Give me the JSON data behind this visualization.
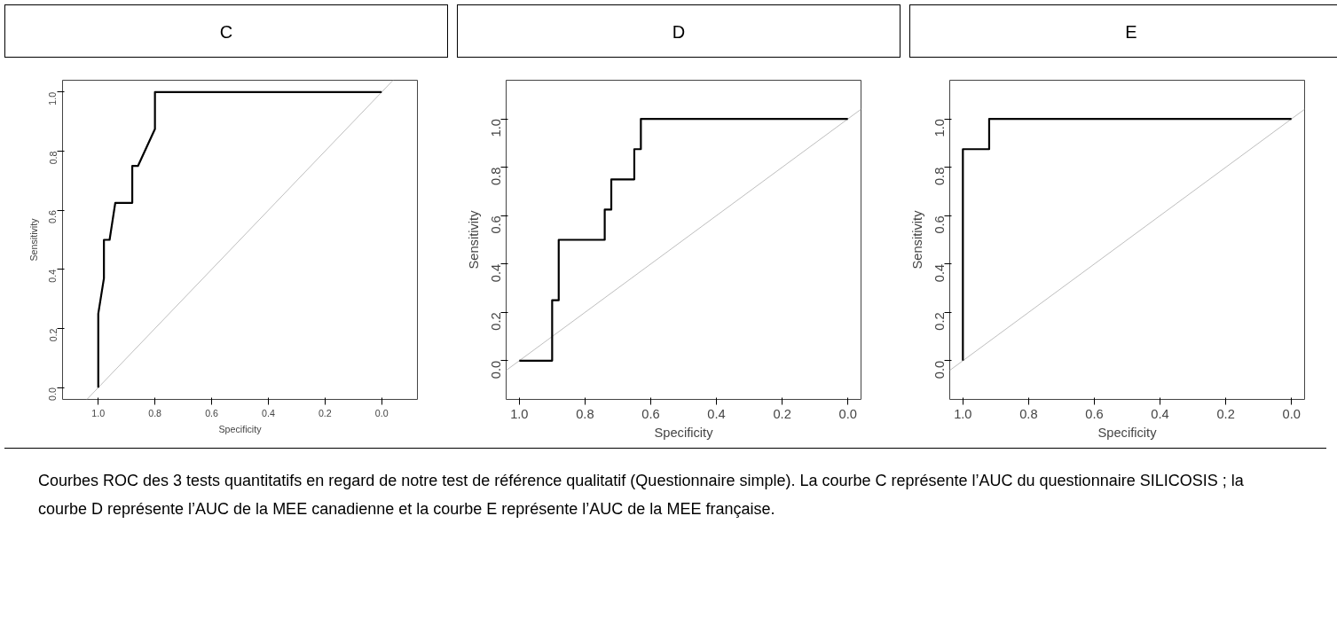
{
  "chart_data": [
    {
      "type": "line",
      "title": "C",
      "xlabel": "Specificity",
      "ylabel": "Sensitivity",
      "grid": false,
      "series": [
        {
          "color": "#000000",
          "x": [
            1.0,
            1.0,
            0.98,
            0.98,
            0.96,
            0.94,
            0.88,
            0.88,
            0.86,
            0.8,
            0.8,
            0.0
          ],
          "values": [
            0.0,
            0.25,
            0.37,
            0.5,
            0.5,
            0.625,
            0.625,
            0.75,
            0.75,
            0.875,
            1.0,
            1.0
          ]
        },
        {
          "color": "#bebebe",
          "x": [
            1.04,
            -0.04
          ],
          "values": [
            -0.04,
            1.04
          ]
        }
      ],
      "xlim": [
        1.126,
        -0.126
      ],
      "ylim": [
        -0.04,
        1.04
      ],
      "xticks": [
        {
          "value": 1.0,
          "label": "1.0"
        },
        {
          "value": 0.8,
          "label": "0.8"
        },
        {
          "value": 0.6,
          "label": "0.6"
        },
        {
          "value": 0.4,
          "label": "0.4"
        },
        {
          "value": 0.2,
          "label": "0.2"
        },
        {
          "value": 0.0,
          "label": "0.0"
        }
      ],
      "yticks": [
        {
          "value": 0.0,
          "label": "0.0"
        },
        {
          "value": 0.2,
          "label": "0.2"
        },
        {
          "value": 0.4,
          "label": "0.4"
        },
        {
          "value": 0.6,
          "label": "0.6"
        },
        {
          "value": 0.8,
          "label": "0.8"
        },
        {
          "value": 1.0,
          "label": "1.0"
        }
      ],
      "annotations": [
        "Courbes ROC des 3 tests quantitatifs en regard de notre test de référence qualitatif (Questionnaire simple). La courbe C représente l’AUC du questionnaire SILICOSIS ; la courbe D représente l’AUC de la MEE canadienne et la courbe E représente l’AUC de la MEE française."
      ]
    },
    {
      "type": "line",
      "title": "D",
      "xlabel": "Specificity",
      "ylabel": "Sensitivity",
      "grid": false,
      "series": [
        {
          "color": "#000000",
          "x": [
            1.0,
            0.9,
            0.9,
            0.88,
            0.88,
            0.74,
            0.74,
            0.72,
            0.72,
            0.65,
            0.65,
            0.63,
            0.63,
            0.0
          ],
          "values": [
            0.0,
            0.0,
            0.25,
            0.25,
            0.5,
            0.5,
            0.625,
            0.625,
            0.75,
            0.75,
            0.875,
            0.875,
            1.0,
            1.0
          ]
        },
        {
          "color": "#bebebe",
          "x": [
            1.04,
            -0.04
          ],
          "values": [
            -0.04,
            1.04
          ]
        }
      ],
      "xlim": [
        1.04,
        -0.04
      ],
      "ylim": [
        -0.16,
        1.16
      ],
      "xticks": [
        {
          "value": 1.0,
          "label": "1.0"
        },
        {
          "value": 0.8,
          "label": "0.8"
        },
        {
          "value": 0.6,
          "label": "0.6"
        },
        {
          "value": 0.4,
          "label": "0.4"
        },
        {
          "value": 0.2,
          "label": "0.2"
        },
        {
          "value": 0.0,
          "label": "0.0"
        }
      ],
      "yticks": [
        {
          "value": 0.0,
          "label": "0.0"
        },
        {
          "value": 0.2,
          "label": "0.2"
        },
        {
          "value": 0.4,
          "label": "0.4"
        },
        {
          "value": 0.6,
          "label": "0.6"
        },
        {
          "value": 0.8,
          "label": "0.8"
        },
        {
          "value": 1.0,
          "label": "1.0"
        }
      ]
    },
    {
      "type": "line",
      "title": "E",
      "xlabel": "Specificity",
      "ylabel": "Sensitivity",
      "grid": false,
      "series": [
        {
          "color": "#000000",
          "x": [
            1.0,
            1.0,
            0.92,
            0.92,
            0.0
          ],
          "values": [
            0.0,
            0.875,
            0.875,
            1.0,
            1.0
          ]
        },
        {
          "color": "#bebebe",
          "x": [
            1.04,
            -0.04
          ],
          "values": [
            -0.04,
            1.04
          ]
        }
      ],
      "xlim": [
        1.04,
        -0.04
      ],
      "ylim": [
        -0.16,
        1.16
      ],
      "xticks": [
        {
          "value": 1.0,
          "label": "1.0"
        },
        {
          "value": 0.8,
          "label": "0.8"
        },
        {
          "value": 0.6,
          "label": "0.6"
        },
        {
          "value": 0.4,
          "label": "0.4"
        },
        {
          "value": 0.2,
          "label": "0.2"
        },
        {
          "value": 0.0,
          "label": "0.0"
        }
      ],
      "yticks": [
        {
          "value": 0.0,
          "label": "0.0"
        },
        {
          "value": 0.2,
          "label": "0.2"
        },
        {
          "value": 0.4,
          "label": "0.4"
        },
        {
          "value": 0.6,
          "label": "0.6"
        },
        {
          "value": 0.8,
          "label": "0.8"
        },
        {
          "value": 1.0,
          "label": "1.0"
        }
      ]
    }
  ]
}
